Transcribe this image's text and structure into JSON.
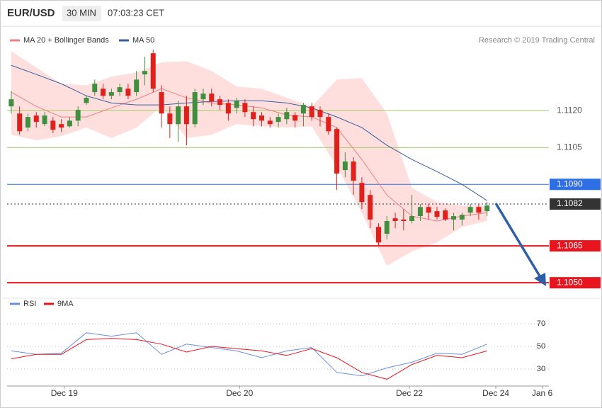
{
  "chart_data": {
    "type": "candlestick",
    "title": "EUR/USD",
    "timeframe": "30 MIN",
    "time": "07:03:23 CET",
    "credit": "Research © 2019 Trading Central",
    "up_color": "#3f8f3f",
    "down_color": "#e0201a",
    "xlim": [
      -1,
      130
    ],
    "ylim": [
      1.1044,
      1.1152
    ],
    "xticks": [
      {
        "value": 12.7,
        "label": "Dec 19"
      },
      {
        "value": 54.7,
        "label": "Dec 20"
      },
      {
        "value": 95.4,
        "label": "Dec 22"
      },
      {
        "value": 116.1,
        "label": "Dec 24"
      },
      {
        "value": 127.2,
        "label": "Jan 6"
      }
    ],
    "x": [
      0,
      2,
      4,
      6,
      8,
      10,
      12,
      14,
      16,
      18,
      20,
      22,
      24,
      26,
      28,
      30,
      32,
      34,
      36,
      38,
      40,
      42,
      44,
      46,
      48,
      50,
      52,
      54,
      56,
      58,
      60,
      62,
      64,
      66,
      68,
      70,
      72,
      74,
      76,
      78,
      80,
      82,
      84,
      86,
      88,
      90,
      92,
      94,
      96,
      98,
      100,
      102,
      104,
      106,
      108,
      110,
      112,
      114
    ],
    "candles": [
      [
        1.11217,
        1.1128,
        1.11188,
        1.11246
      ],
      [
        1.11188,
        1.11217,
        1.11102,
        1.11116
      ],
      [
        1.11131,
        1.11188,
        1.11116,
        1.11174
      ],
      [
        1.1118,
        1.11194,
        1.11131,
        1.11154
      ],
      [
        1.11145,
        1.11194,
        1.11136,
        1.1118
      ],
      [
        1.11159,
        1.11174,
        1.11108,
        1.11122
      ],
      [
        1.11145,
        1.11165,
        1.11113,
        1.11131
      ],
      [
        1.11136,
        1.11174,
        1.11131,
        1.11159
      ],
      [
        1.11159,
        1.11217,
        1.11136,
        1.11203
      ],
      [
        1.11231,
        1.1126,
        1.11223,
        1.11252
      ],
      [
        1.11275,
        1.11326,
        1.1126,
        1.11309
      ],
      [
        1.11289,
        1.11309,
        1.11246,
        1.1126
      ],
      [
        1.1126,
        1.11289,
        1.11246,
        1.11275
      ],
      [
        1.11275,
        1.11309,
        1.1126,
        1.11295
      ],
      [
        1.11289,
        1.11309,
        1.11246,
        1.1126
      ],
      [
        1.11275,
        1.11361,
        1.1126,
        1.11326
      ],
      [
        1.11347,
        1.11419,
        1.11303,
        1.11361
      ],
      [
        1.11433,
        1.11447,
        1.11275,
        1.11289
      ],
      [
        1.11275,
        1.11303,
        1.11131,
        1.11188
      ],
      [
        1.11188,
        1.11217,
        1.11088,
        1.11145
      ],
      [
        1.11145,
        1.1124,
        1.11073,
        1.11217
      ],
      [
        1.11217,
        1.1126,
        1.11059,
        1.11145
      ],
      [
        1.11145,
        1.11289,
        1.11131,
        1.11275
      ],
      [
        1.11246,
        1.11289,
        1.11223,
        1.11269
      ],
      [
        1.11269,
        1.11289,
        1.11217,
        1.11237
      ],
      [
        1.11246,
        1.1126,
        1.11203,
        1.11223
      ],
      [
        1.11231,
        1.11246,
        1.11159,
        1.11188
      ],
      [
        1.11211,
        1.11252,
        1.11188,
        1.1124
      ],
      [
        1.11231,
        1.11246,
        1.11174,
        1.11194
      ],
      [
        1.11194,
        1.11217,
        1.11136,
        1.11165
      ],
      [
        1.1118,
        1.11194,
        1.11136,
        1.11159
      ],
      [
        1.11159,
        1.11174,
        1.11131,
        1.11145
      ],
      [
        1.11154,
        1.11188,
        1.11131,
        1.11174
      ],
      [
        1.11165,
        1.11211,
        1.11145,
        1.11194
      ],
      [
        1.11182,
        1.11194,
        1.11131,
        1.11159
      ],
      [
        1.11188,
        1.11231,
        1.11136,
        1.11223
      ],
      [
        1.11217,
        1.11231,
        1.11159,
        1.11174
      ],
      [
        1.11203,
        1.11217,
        1.11136,
        1.11174
      ],
      [
        1.11174,
        1.11188,
        1.11102,
        1.11116
      ],
      [
        1.11125,
        1.11131,
        1.10877,
        1.10944
      ],
      [
        1.10958,
        1.1103,
        1.10929,
        1.10993
      ],
      [
        1.10993,
        1.1101,
        1.10857,
        1.10915
      ],
      [
        1.10906,
        1.10929,
        1.10799,
        1.10828
      ],
      [
        1.10857,
        1.10877,
        1.10722,
        1.10757
      ],
      [
        1.10727,
        1.10742,
        1.10647,
        1.10664
      ],
      [
        1.10699,
        1.10771,
        1.10676,
        1.10751
      ],
      [
        1.10762,
        1.10785,
        1.10722,
        1.10751
      ],
      [
        1.10757,
        1.10799,
        1.10713,
        1.10751
      ],
      [
        1.10751,
        1.10857,
        1.10742,
        1.10771
      ],
      [
        1.10771,
        1.1082,
        1.10751,
        1.10808
      ],
      [
        1.10808,
        1.1082,
        1.10757,
        1.10785
      ],
      [
        1.10791,
        1.10808,
        1.10757,
        1.10768
      ],
      [
        1.10794,
        1.10802,
        1.10751,
        1.10757
      ],
      [
        1.10757,
        1.10785,
        1.10713,
        1.10771
      ],
      [
        1.10757,
        1.10785,
        1.10733,
        1.10776
      ],
      [
        1.10785,
        1.1082,
        1.10771,
        1.10808
      ],
      [
        1.10808,
        1.1082,
        1.10757,
        1.10785
      ],
      [
        1.10791,
        1.10828,
        1.10771,
        1.10814
      ]
    ],
    "line_x": [
      0,
      6,
      12,
      18,
      24,
      30,
      36,
      42,
      48,
      54,
      60,
      66,
      72,
      78,
      84,
      90,
      96,
      102,
      108,
      114
    ],
    "bollinger": {
      "name": "MA 20 + Bollinger Bands",
      "color": "#f08080",
      "fill": "#ffdede",
      "upper": [
        1.11442,
        1.11375,
        1.11309,
        1.11303,
        1.11338,
        1.11355,
        1.11396,
        1.11401,
        1.11361,
        1.11298,
        1.11289,
        1.11252,
        1.11217,
        1.11326,
        1.11332,
        1.11188,
        1.10886,
        1.10828,
        1.10814,
        1.10814
      ],
      "middle": [
        1.11275,
        1.11217,
        1.11174,
        1.11174,
        1.11211,
        1.11246,
        1.11289,
        1.11252,
        1.11231,
        1.11223,
        1.11211,
        1.11182,
        1.11174,
        1.11131,
        1.11001,
        1.10857,
        1.10771,
        1.10751,
        1.10771,
        1.10785
      ],
      "lower": [
        1.11102,
        1.11079,
        1.11096,
        1.11131,
        1.11088,
        1.11131,
        1.11217,
        1.11088,
        1.11102,
        1.11145,
        1.11136,
        1.11131,
        1.11136,
        1.10972,
        1.10785,
        1.10569,
        1.10627,
        1.10664,
        1.10727,
        1.10751
      ]
    },
    "ma50": {
      "name": "MA 50",
      "color": "#35609c",
      "values": [
        1.11384,
        1.11347,
        1.11309,
        1.1126,
        1.11231,
        1.11223,
        1.11223,
        1.11231,
        1.11237,
        1.1124,
        1.1124,
        1.11231,
        1.11211,
        1.11174,
        1.11131,
        1.11059,
        1.11001,
        1.10952,
        1.109,
        1.10834
      ]
    },
    "levels": [
      {
        "value": 1.112,
        "label": "1.1120",
        "color": "#9ccc65",
        "style": "solid",
        "box": false
      },
      {
        "value": 1.1105,
        "label": "1.1105",
        "color": "#9ccc65",
        "style": "solid",
        "box": false
      },
      {
        "value": 1.109,
        "label": "1.1090",
        "color": "#2f6fe6",
        "style": "solid",
        "box": true
      },
      {
        "value": 1.1082,
        "label": "1.1082",
        "color": "#333333",
        "style": "dotted",
        "box": true
      },
      {
        "value": 1.1065,
        "label": "1.1065",
        "color": "#e8141e",
        "style": "bold",
        "box": true
      },
      {
        "value": 1.105,
        "label": "1.1050",
        "color": "#e8141e",
        "style": "bold",
        "box": true
      }
    ],
    "rsi": {
      "ylim": [
        15,
        77.5
      ],
      "yticks": [
        30,
        50,
        70
      ],
      "grid": true,
      "series": [
        {
          "name": "RSI",
          "color": "#6a8fe0",
          "values": [
            46,
            43,
            44,
            62,
            59,
            62,
            43,
            52,
            49,
            46,
            40,
            46,
            49,
            27,
            24,
            31,
            36,
            44,
            43,
            52
          ]
        },
        {
          "name": "9MA",
          "color": "#e8141e",
          "values": [
            39,
            43,
            43,
            56,
            57,
            56,
            52,
            45,
            50,
            48,
            46,
            42,
            48,
            40,
            27,
            21,
            34,
            42,
            40,
            46
          ]
        }
      ]
    }
  }
}
